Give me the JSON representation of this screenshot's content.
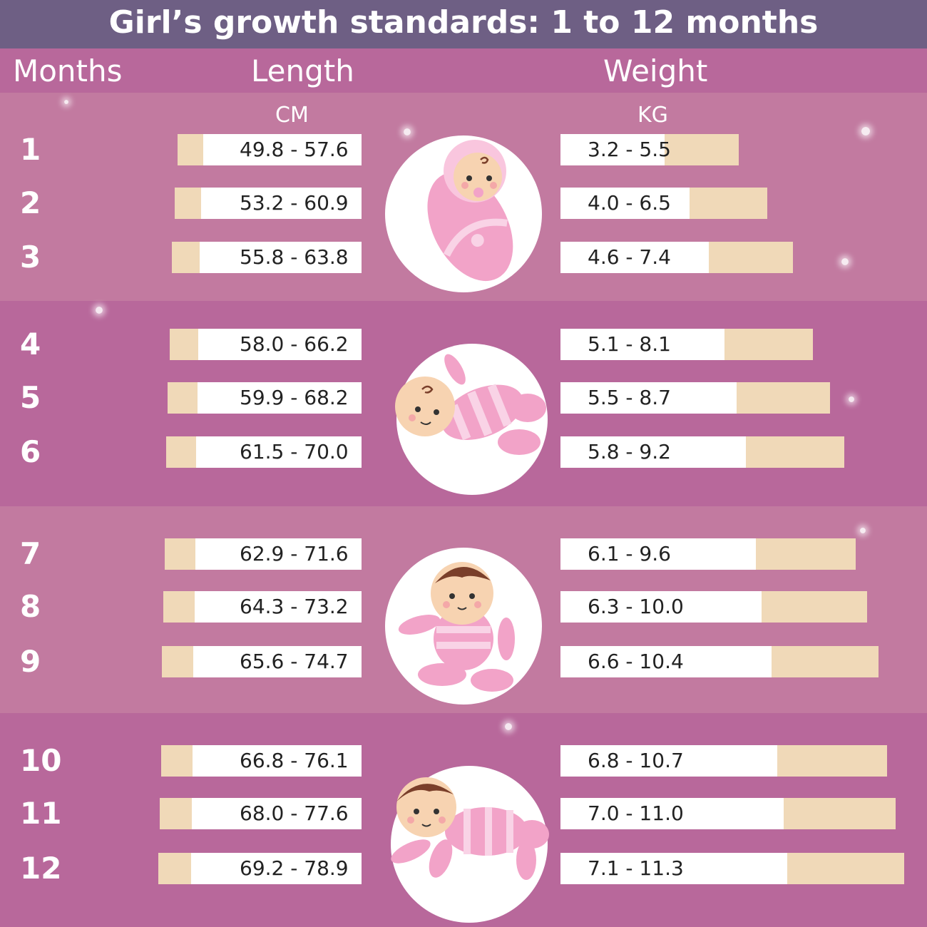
{
  "title": "Girl’s growth standards: 1 to 12 months",
  "headers": {
    "months": "Months",
    "length": "Length",
    "weight": "Weight",
    "length_unit": "CM",
    "weight_unit": "KG"
  },
  "colors": {
    "title_bar": "#6e5f84",
    "band_light": "#c27aa0",
    "band_dark": "#b8689b",
    "bar_white": "#ffffff",
    "bar_beige": "#f0d9b8",
    "baby_pink": "#f2a3c8",
    "baby_stripe": "#f9d3e6",
    "skin": "#f7d3b1",
    "hair": "#7a3f2a"
  },
  "chart_data": {
    "type": "table",
    "title": "Girl’s growth standards: 1 to 12 months",
    "months": [
      "1",
      "2",
      "3",
      "4",
      "5",
      "6",
      "7",
      "8",
      "9",
      "10",
      "11",
      "12"
    ],
    "length_cm": {
      "label": "Length",
      "unit": "CM",
      "ranges": [
        [
          49.8,
          57.6
        ],
        [
          53.2,
          60.9
        ],
        [
          55.8,
          63.8
        ],
        [
          58.0,
          66.2
        ],
        [
          59.9,
          68.2
        ],
        [
          61.5,
          70.0
        ],
        [
          62.9,
          71.6
        ],
        [
          64.3,
          73.2
        ],
        [
          65.6,
          74.7
        ],
        [
          66.8,
          76.1
        ],
        [
          68.0,
          77.6
        ],
        [
          69.2,
          78.9
        ]
      ],
      "labels": [
        "49.8 - 57.6",
        "53.2 - 60.9",
        "55.8 - 63.8",
        "58.0 - 66.2",
        "59.9 - 68.2",
        "61.5 - 70.0",
        "62.9 - 71.6",
        "64.3 - 73.2",
        "65.6 - 74.7",
        "66.8 - 76.1",
        "68.0 - 77.6",
        "69.2 - 78.9"
      ]
    },
    "weight_kg": {
      "label": "Weight",
      "unit": "KG",
      "ranges": [
        [
          3.2,
          5.5
        ],
        [
          4.0,
          6.5
        ],
        [
          4.6,
          7.4
        ],
        [
          5.1,
          8.1
        ],
        [
          5.5,
          8.7
        ],
        [
          5.8,
          9.2
        ],
        [
          6.1,
          9.6
        ],
        [
          6.3,
          10.0
        ],
        [
          6.6,
          10.4
        ],
        [
          6.8,
          10.7
        ],
        [
          7.0,
          11.0
        ],
        [
          7.1,
          11.3
        ]
      ],
      "labels": [
        "3.2 - 5.5",
        "4.0 - 6.5",
        "4.6 - 7.4",
        "5.1 - 8.1",
        "5.5 - 8.7",
        "5.8 - 9.2",
        "6.1 - 9.6",
        "6.3 - 10.0",
        "6.6 - 10.4",
        "6.8 - 10.7",
        "7.0 - 11.0",
        "7.1 - 11.3"
      ]
    }
  },
  "illustrations": [
    {
      "icon": "swaddled-baby-icon",
      "months": "1-3"
    },
    {
      "icon": "lying-baby-icon",
      "months": "4-6"
    },
    {
      "icon": "sitting-baby-icon",
      "months": "7-9"
    },
    {
      "icon": "crawling-baby-icon",
      "months": "10-12"
    }
  ]
}
